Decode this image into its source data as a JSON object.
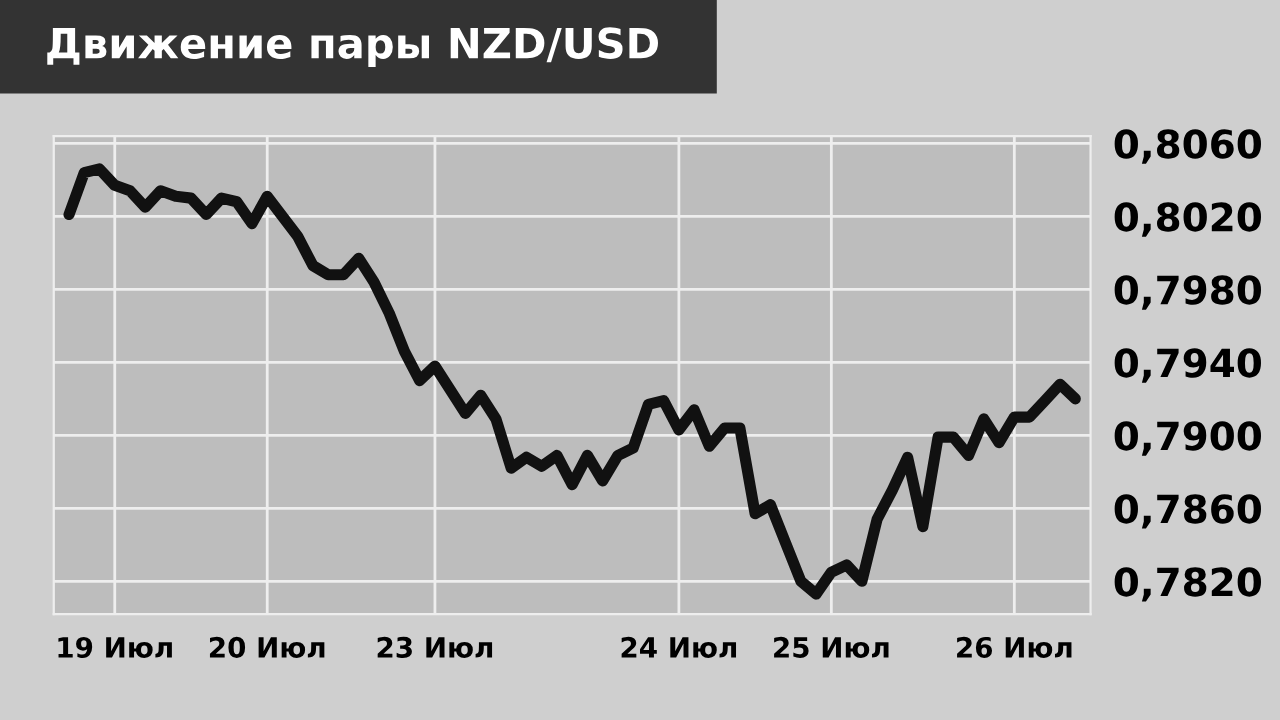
{
  "chart_data": {
    "type": "line",
    "title": "Движение пары NZD/USD",
    "color": "#111111",
    "grid": true,
    "marker": "none",
    "line_style": "solid",
    "categories": [
      null,
      null,
      null,
      "19 Июл",
      null,
      null,
      null,
      null,
      null,
      null,
      null,
      null,
      null,
      "20 Июл",
      null,
      null,
      null,
      null,
      null,
      null,
      null,
      null,
      null,
      null,
      "23 Июл",
      null,
      null,
      null,
      null,
      null,
      null,
      null,
      null,
      null,
      null,
      null,
      null,
      null,
      null,
      null,
      "24 Июл",
      null,
      null,
      null,
      null,
      null,
      null,
      null,
      null,
      null,
      "25 Июл",
      null,
      null,
      null,
      null,
      null,
      null,
      null,
      null,
      null,
      null,
      null,
      "26 Июл",
      null,
      null,
      null,
      null
    ],
    "values": [
      0.8021,
      0.8044,
      0.8046,
      0.8037,
      0.8034,
      0.8025,
      0.8034,
      0.8031,
      0.803,
      0.8021,
      0.803,
      0.8028,
      0.8016,
      0.8031,
      0.802,
      0.8009,
      0.7993,
      0.7988,
      0.7988,
      0.7997,
      0.7984,
      0.7967,
      0.7946,
      0.793,
      0.7938,
      0.7925,
      0.7912,
      0.7922,
      0.7909,
      0.7882,
      0.7888,
      0.7883,
      0.7889,
      0.7873,
      0.7889,
      0.7875,
      0.7889,
      0.7893,
      0.7917,
      0.7919,
      0.7903,
      0.7914,
      0.7894,
      0.7904,
      0.7904,
      0.7857,
      0.7862,
      0.7841,
      0.782,
      0.7813,
      0.7825,
      0.7829,
      0.782,
      0.7854,
      0.787,
      0.7888,
      0.785,
      0.7899,
      0.7899,
      0.7889,
      0.7909,
      0.7896,
      0.791,
      0.791,
      0.7919,
      0.7928,
      0.792
    ],
    "ylim": [
      0.7802,
      0.8064
    ],
    "yticks": [
      {
        "value": 0.806,
        "label": "0,8060"
      },
      {
        "value": 0.802,
        "label": "0,8020"
      },
      {
        "value": 0.798,
        "label": "0,7980"
      },
      {
        "value": 0.794,
        "label": "0,7940"
      },
      {
        "value": 0.79,
        "label": "0,7900"
      },
      {
        "value": 0.786,
        "label": "0,7860"
      },
      {
        "value": 0.782,
        "label": "0,7820"
      }
    ]
  }
}
